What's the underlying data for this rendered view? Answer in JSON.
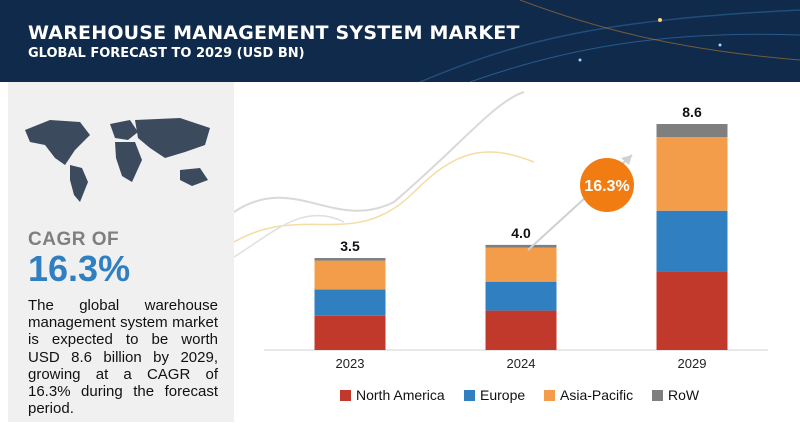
{
  "header": {
    "title": "WAREHOUSE MANAGEMENT SYSTEM MARKET",
    "subtitle": "GLOBAL FORECAST TO 2029 (USD BN)"
  },
  "side": {
    "cagr_label": "CAGR OF",
    "cagr_value": "16.3%",
    "description": "The global warehouse management system market is expected to be worth USD 8.6 billion by 2029, growing at a CAGR of 16.3% during the forecast period."
  },
  "badge": {
    "text": "16.3%"
  },
  "colors": {
    "header_bg": "#0f2a4a",
    "accent_blue": "#2f7fc1",
    "north_america": "#c0392b",
    "europe": "#2f7fc1",
    "asia_pacific": "#f39c4a",
    "row": "#7f7f7f",
    "badge": "#f07c12"
  },
  "chart_data": {
    "type": "bar",
    "stacked": true,
    "categories": [
      "2023",
      "2024",
      "2029"
    ],
    "totals": [
      "3.5",
      "4.0",
      "8.6"
    ],
    "series": [
      {
        "name": "North America",
        "values": [
          1.3,
          1.5,
          3.0
        ]
      },
      {
        "name": "Europe",
        "values": [
          1.0,
          1.1,
          2.3
        ]
      },
      {
        "name": "Asia-Pacific",
        "values": [
          1.1,
          1.3,
          2.8
        ]
      },
      {
        "name": "RoW",
        "values": [
          0.1,
          0.1,
          0.5
        ]
      }
    ],
    "legend": [
      "North America",
      "Europe",
      "Asia-Pacific",
      "RoW"
    ],
    "legend_position": "bottom",
    "grid": false
  }
}
